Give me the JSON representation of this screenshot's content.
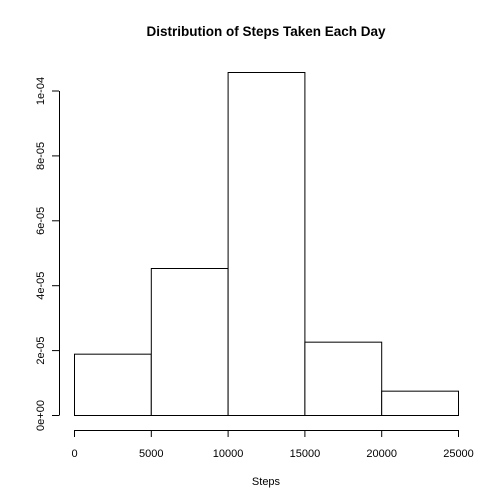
{
  "chart_data": {
    "type": "bar",
    "title": "Distribution of Steps Taken Each Day",
    "xlabel": "Steps",
    "ylabel": "",
    "bins": [
      {
        "start": 0,
        "end": 5000,
        "density": 1.89e-05
      },
      {
        "start": 5000,
        "end": 10000,
        "density": 4.53e-05
      },
      {
        "start": 10000,
        "end": 15000,
        "density": 0.0001057
      },
      {
        "start": 15000,
        "end": 20000,
        "density": 2.26e-05
      },
      {
        "start": 20000,
        "end": 25000,
        "density": 7.5e-06
      }
    ],
    "xlim": [
      0,
      25000
    ],
    "ylim": [
      0,
      0.0001057
    ],
    "x_ticks": [
      0,
      5000,
      10000,
      15000,
      20000,
      25000
    ],
    "x_tick_labels": [
      "0",
      "5000",
      "10000",
      "15000",
      "20000",
      "25000"
    ],
    "y_ticks": [
      0,
      2e-05,
      4e-05,
      6e-05,
      8e-05,
      0.0001
    ],
    "y_tick_labels": [
      "0e+00",
      "2e-05",
      "4e-05",
      "6e-05",
      "8e-05",
      "1e-04"
    ],
    "grid": false,
    "legend": "none",
    "colors": {
      "bar_fill": "#ffffff",
      "bar_stroke": "#000000"
    }
  }
}
